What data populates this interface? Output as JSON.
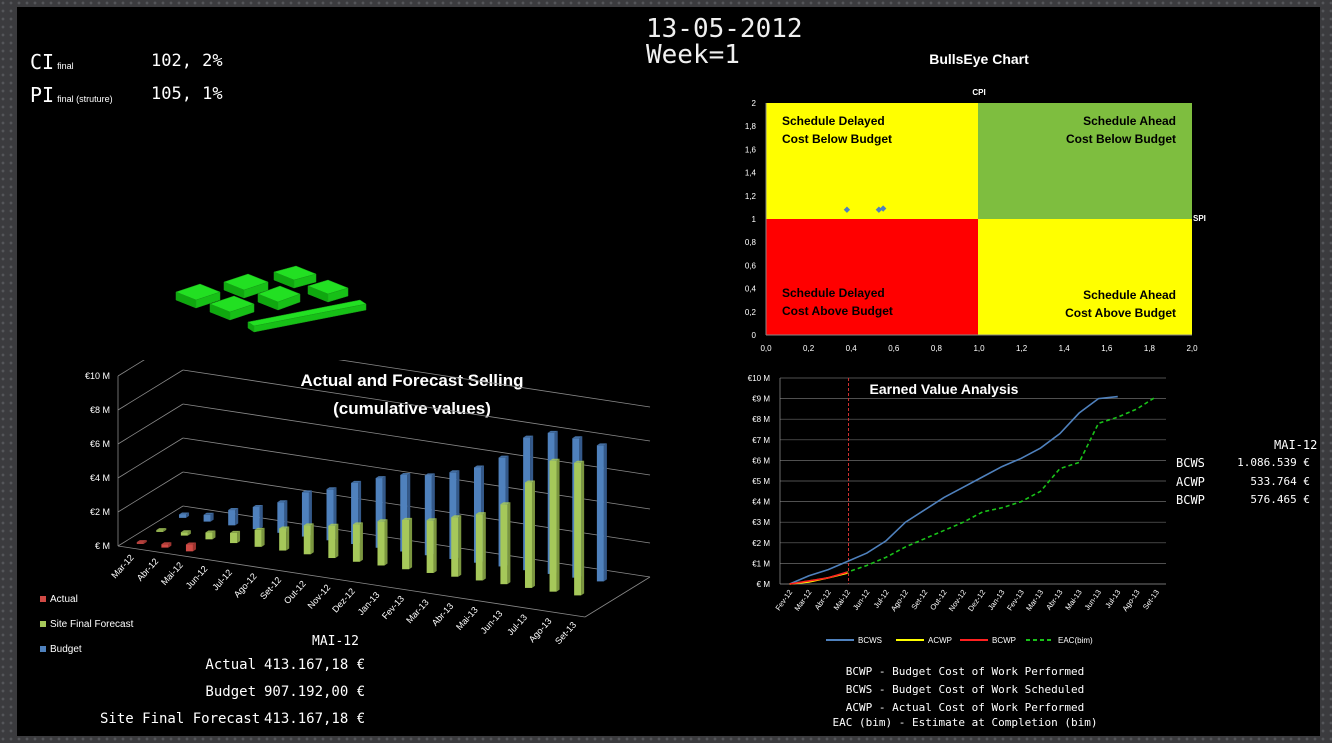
{
  "header": {
    "date": "13-05-2012",
    "week": "Week=1"
  },
  "kpis": [
    {
      "symbol": "CI",
      "sub": "final",
      "value": "102, 2%"
    },
    {
      "symbol": "PI",
      "sub": "final (struture)",
      "value": "105, 1%"
    }
  ],
  "bullseye": {
    "title": "BullsEye Chart",
    "y_axis_label": "CPI",
    "x_axis_label": "SPI",
    "quadrants": {
      "top_left": [
        "Schedule Delayed",
        "Cost Below Budget"
      ],
      "top_right": [
        "Schedule Ahead",
        "Cost Below Budget"
      ],
      "bottom_left": [
        "Schedule Delayed",
        "Cost Above Budget"
      ],
      "bottom_right": [
        "Schedule Ahead",
        "Cost Above Budget"
      ]
    },
    "colors": {
      "yellow": "#ffff00",
      "green": "#7ebe3f",
      "red": "#ff0000"
    }
  },
  "selling_legend": [
    {
      "name": "Actual",
      "color": "#d04a45"
    },
    {
      "name": "Site Final Forecast",
      "color": "#a6c85a"
    },
    {
      "name": "Budget",
      "color": "#4f81bd"
    }
  ],
  "selling_summary": {
    "month": "MAI-12",
    "rows": [
      {
        "label": "Actual",
        "value": "413.167,18 €"
      },
      {
        "label": "Budget",
        "value": "907.192,00 €"
      },
      {
        "label": "Site Final Forecast",
        "value": "413.167,18 €"
      }
    ]
  },
  "ev_summary": {
    "month": "MAI-12",
    "rows": [
      {
        "label": "BCWS",
        "value": "1.086.539 €"
      },
      {
        "label": "ACWP",
        "value": "533.764 €"
      },
      {
        "label": "BCWP",
        "value": "576.465 €"
      }
    ]
  },
  "ev_legend": [
    {
      "name": "BCWS",
      "color": "#4f81bd",
      "dash": false
    },
    {
      "name": "ACWP",
      "color": "#ffff00",
      "dash": false
    },
    {
      "name": "BCWP",
      "color": "#ff2020",
      "dash": false
    },
    {
      "name": "EAC(bim)",
      "color": "#19c219",
      "dash": true
    }
  ],
  "definitions": [
    "BCWP - Budget Cost of Work Performed",
    "BCWS - Budget Cost of Work Scheduled",
    "ACWP - Actual Cost of Work Performed",
    "EAC (bim) - Estimate at Completion (bim)"
  ],
  "chart_data": [
    {
      "type": "scatter",
      "title": "BullsEye Chart",
      "xlabel": "SPI",
      "ylabel": "CPI",
      "xlim": [
        0,
        2
      ],
      "ylim": [
        0,
        2
      ],
      "x_ticks": [
        "0,0",
        "0,2",
        "0,4",
        "0,6",
        "0,8",
        "1,0",
        "1,2",
        "1,4",
        "1,6",
        "1,8",
        "2,0"
      ],
      "y_ticks": [
        "0",
        "0,2",
        "0,4",
        "0,6",
        "0,8",
        "1",
        "1,2",
        "1,4",
        "1,6",
        "1,8",
        "2"
      ],
      "points": [
        {
          "x": 0.38,
          "y": 1.08
        },
        {
          "x": 0.53,
          "y": 1.08
        },
        {
          "x": 0.55,
          "y": 1.09
        }
      ],
      "point_color": "#4f81bd"
    },
    {
      "type": "bar",
      "title": "Actual and Forecast Selling (cumulative values)",
      "title_lines": [
        "Actual and Forecast Selling",
        "(cumulative values)"
      ],
      "y_ticks": [
        "€ M",
        "€2 M",
        "€4 M",
        "€6 M",
        "€8 M",
        "€10 M"
      ],
      "ylim": [
        0,
        10
      ],
      "categories": [
        "Mar-12",
        "Abr-12",
        "Mai-12",
        "Jun-12",
        "Jul-12",
        "Ago-12",
        "Set-12",
        "Out-12",
        "Nov-12",
        "Dez-12",
        "Jan-13",
        "Fev-13",
        "Mar-13",
        "Abr-13",
        "Mai-13",
        "Jun-13",
        "Jul-13",
        "Ago-13",
        "Set-13"
      ],
      "series": [
        {
          "name": "Actual",
          "values": [
            0.1,
            0.2,
            0.4,
            null,
            null,
            null,
            null,
            null,
            null,
            null,
            null,
            null,
            null,
            null,
            null,
            null,
            null,
            null,
            null
          ]
        },
        {
          "name": "Site Final Forecast",
          "values": [
            0.1,
            0.2,
            0.4,
            0.6,
            1.0,
            1.3,
            1.7,
            1.9,
            2.2,
            2.6,
            2.9,
            3.1,
            3.5,
            3.9,
            4.7,
            6.2,
            7.7,
            7.8,
            null
          ]
        },
        {
          "name": "Budget",
          "values": [
            0.2,
            0.4,
            0.9,
            1.3,
            1.8,
            2.6,
            3.0,
            3.6,
            4.1,
            4.5,
            4.7,
            5.1,
            5.6,
            6.4,
            7.8,
            8.3,
            8.2,
            8.0,
            null
          ]
        }
      ]
    },
    {
      "type": "line",
      "title": "Earned Value Analysis",
      "y_ticks": [
        "€0 M",
        "€1 M",
        "€2 M",
        "€3 M",
        "€4 M",
        "€5 M",
        "€6 M",
        "€7 M",
        "€8 M",
        "€9 M",
        "€10 M"
      ],
      "y_tick_labels": [
        "€ M",
        "€1 M",
        "€2 M",
        "€3 M",
        "€4 M",
        "€5 M",
        "€6 M",
        "€7 M",
        "€8 M",
        "€9 M",
        "€10 M"
      ],
      "ylim": [
        0,
        10
      ],
      "categories": [
        "Fev-12",
        "Mar-12",
        "Abr-12",
        "Mai-12",
        "Jun-12",
        "Jul-12",
        "Ago-12",
        "Set-12",
        "Out-12",
        "Nov-12",
        "Dez-12",
        "Jan-13",
        "Fev-13",
        "Mar-13",
        "Abr-13",
        "Mai-13",
        "Jun-13",
        "Jul-13",
        "Ago-13",
        "Set-13"
      ],
      "marker_category_index": 3,
      "series": [
        {
          "name": "BCWS",
          "values": [
            0,
            0.4,
            0.7,
            1.1,
            1.5,
            2.1,
            3.0,
            3.6,
            4.2,
            4.7,
            5.2,
            5.7,
            6.1,
            6.6,
            7.3,
            8.3,
            9.0,
            9.1,
            null,
            null
          ]
        },
        {
          "name": "ACWP",
          "values": [
            0,
            0.1,
            0.3,
            0.53,
            null,
            null,
            null,
            null,
            null,
            null,
            null,
            null,
            null,
            null,
            null,
            null,
            null,
            null,
            null,
            null
          ]
        },
        {
          "name": "BCWP",
          "values": [
            0,
            0.15,
            0.3,
            0.58,
            null,
            null,
            null,
            null,
            null,
            null,
            null,
            null,
            null,
            null,
            null,
            null,
            null,
            null,
            null,
            null
          ]
        },
        {
          "name": "EAC(bim)",
          "values": [
            0,
            0.15,
            0.3,
            0.58,
            0.9,
            1.3,
            1.8,
            2.2,
            2.6,
            3.0,
            3.5,
            3.7,
            4.0,
            4.5,
            5.6,
            5.9,
            7.8,
            8.1,
            8.5,
            9.1
          ]
        }
      ]
    }
  ]
}
